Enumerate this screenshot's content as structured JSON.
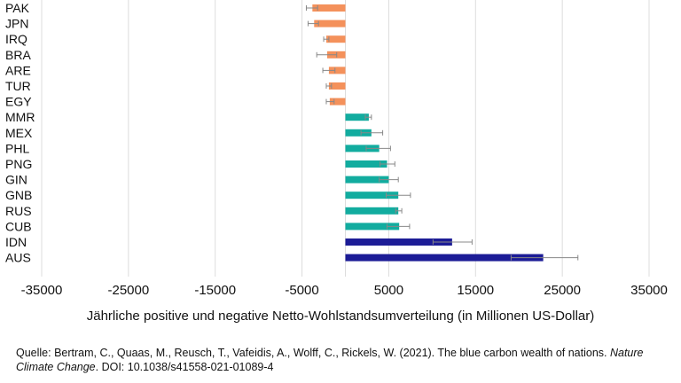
{
  "chart_data": {
    "type": "bar",
    "orientation": "horizontal",
    "categories": [
      "PAK",
      "JPN",
      "IRQ",
      "BRA",
      "ARE",
      "TUR",
      "EGY",
      "MMR",
      "MEX",
      "PHL",
      "PNG",
      "GIN",
      "GNB",
      "RUS",
      "CUB",
      "IDN",
      "AUS"
    ],
    "values": [
      -3800,
      -3600,
      -2200,
      -2100,
      -1900,
      -1900,
      -1800,
      2700,
      3000,
      3900,
      4800,
      5000,
      6100,
      6100,
      6200,
      12300,
      22800
    ],
    "error_low": [
      -4500,
      -4300,
      -2500,
      -3300,
      -2600,
      -2200,
      -2200,
      2300,
      1800,
      2400,
      4000,
      3900,
      4700,
      5800,
      4800,
      10100,
      19100
    ],
    "error_high": [
      -3200,
      -3100,
      -1900,
      -1000,
      -1200,
      -1600,
      -1300,
      3000,
      4300,
      5200,
      5700,
      6100,
      7500,
      6500,
      7400,
      14600,
      26800
    ],
    "bar_colors": [
      "#f4915b",
      "#f4915b",
      "#f4915b",
      "#f4915b",
      "#f4915b",
      "#f4915b",
      "#f4915b",
      "#12ac9f",
      "#12ac9f",
      "#12ac9f",
      "#12ac9f",
      "#12ac9f",
      "#12ac9f",
      "#12ac9f",
      "#12ac9f",
      "#1c1c96",
      "#1c1c96"
    ],
    "xlim": [
      -35000,
      35000
    ],
    "xticks": [
      "-35000",
      "-25000",
      "-15000",
      "-5000",
      "5000",
      "15000",
      "25000",
      "35000"
    ],
    "xtick_values": [
      -35000,
      -25000,
      -15000,
      -5000,
      5000,
      15000,
      25000,
      35000
    ],
    "grid": true,
    "xlabel": "Jährliche positive und negative Netto-Wohlstandsumverteilung (in Millionen US-Dollar)",
    "title": ""
  },
  "source": {
    "prefix": "Quelle: Bertram, C., Quaas, M., Reusch, T., Vafeidis, A., Wolff, C., Rickels, W. (2021). The blue carbon wealth of nations. ",
    "journal": "Nature Climate Change",
    "suffix": ". DOI: 10.1038/s41558-021-01089-4"
  }
}
